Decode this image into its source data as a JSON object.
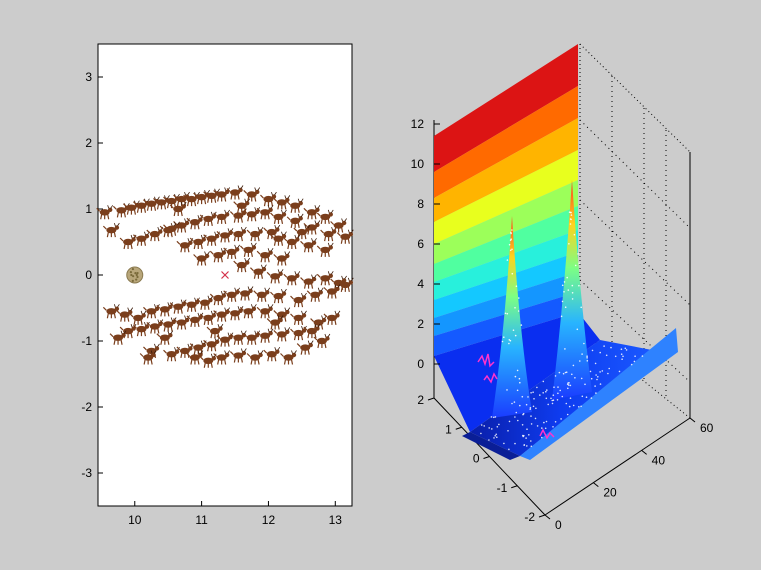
{
  "chart_data": [
    {
      "type": "scatter",
      "title": "",
      "xlabel": "",
      "ylabel": "",
      "xlim": [
        9.45,
        13.25
      ],
      "ylim": [
        -3.5,
        3.5
      ],
      "x_ticks": [
        "10",
        "11",
        "12",
        "13"
      ],
      "y_ticks": [
        "-3",
        "-2",
        "-1",
        "0",
        "1",
        "2",
        "3"
      ],
      "grid": false,
      "markers": {
        "agent_color": "#7a3e1c",
        "target_color": "#d4324a",
        "food_color": "#b8a67a"
      },
      "food_patch": {
        "x": 10.0,
        "y": 0.0
      },
      "target": {
        "x": 11.35,
        "y": 0.0
      },
      "agents_upper": [
        [
          9.55,
          0.95
        ],
        [
          9.65,
          0.68
        ],
        [
          9.8,
          0.98
        ],
        [
          9.95,
          1.02
        ],
        [
          10.1,
          1.05
        ],
        [
          10.25,
          1.08
        ],
        [
          10.4,
          1.1
        ],
        [
          10.55,
          1.12
        ],
        [
          10.7,
          1.15
        ],
        [
          10.85,
          1.15
        ],
        [
          11.0,
          1.18
        ],
        [
          11.15,
          1.2
        ],
        [
          11.3,
          1.22
        ],
        [
          11.5,
          1.25
        ],
        [
          11.75,
          1.22
        ],
        [
          12.0,
          1.15
        ],
        [
          12.2,
          1.1
        ],
        [
          12.4,
          1.05
        ],
        [
          12.65,
          0.95
        ],
        [
          12.85,
          0.88
        ],
        [
          9.9,
          0.5
        ],
        [
          10.1,
          0.55
        ],
        [
          10.3,
          0.62
        ],
        [
          10.5,
          0.68
        ],
        [
          10.7,
          0.75
        ],
        [
          10.9,
          0.8
        ],
        [
          11.1,
          0.85
        ],
        [
          11.3,
          0.88
        ],
        [
          11.55,
          0.9
        ],
        [
          11.75,
          0.92
        ],
        [
          11.95,
          0.95
        ],
        [
          12.15,
          0.88
        ],
        [
          12.4,
          0.82
        ],
        [
          12.65,
          0.72
        ],
        [
          12.9,
          0.62
        ],
        [
          13.05,
          0.75
        ],
        [
          13.15,
          0.58
        ],
        [
          10.65,
          1.0
        ],
        [
          11.6,
          1.05
        ],
        [
          12.5,
          0.65
        ],
        [
          10.75,
          0.45
        ],
        [
          10.95,
          0.5
        ],
        [
          11.15,
          0.55
        ],
        [
          11.35,
          0.6
        ],
        [
          11.55,
          0.62
        ],
        [
          11.8,
          0.62
        ],
        [
          12.05,
          0.65
        ],
        [
          12.35,
          0.5
        ],
        [
          12.6,
          0.45
        ],
        [
          12.85,
          0.38
        ],
        [
          11.0,
          0.25
        ],
        [
          11.25,
          0.3
        ],
        [
          11.45,
          0.35
        ],
        [
          11.7,
          0.38
        ],
        [
          11.95,
          0.3
        ],
        [
          12.2,
          0.25
        ],
        [
          11.6,
          0.15
        ],
        [
          11.85,
          0.05
        ],
        [
          12.1,
          -0.02
        ],
        [
          12.35,
          -0.05
        ],
        [
          12.6,
          -0.1
        ],
        [
          12.85,
          -0.05
        ],
        [
          13.05,
          -0.12
        ],
        [
          10.55,
          0.7
        ],
        [
          12.15,
          0.55
        ]
      ],
      "agents_lower": [
        [
          9.65,
          -0.55
        ],
        [
          9.85,
          -0.6
        ],
        [
          10.05,
          -0.65
        ],
        [
          10.25,
          -0.55
        ],
        [
          10.45,
          -0.52
        ],
        [
          10.65,
          -0.48
        ],
        [
          10.85,
          -0.45
        ],
        [
          11.05,
          -0.42
        ],
        [
          11.25,
          -0.35
        ],
        [
          11.45,
          -0.3
        ],
        [
          11.65,
          -0.28
        ],
        [
          11.9,
          -0.3
        ],
        [
          12.15,
          -0.32
        ],
        [
          12.45,
          -0.38
        ],
        [
          12.7,
          -0.3
        ],
        [
          12.95,
          -0.25
        ],
        [
          13.15,
          -0.15
        ],
        [
          9.9,
          -0.85
        ],
        [
          10.1,
          -0.82
        ],
        [
          10.3,
          -0.78
        ],
        [
          10.5,
          -0.75
        ],
        [
          10.7,
          -0.72
        ],
        [
          10.9,
          -0.68
        ],
        [
          11.1,
          -0.65
        ],
        [
          11.3,
          -0.6
        ],
        [
          11.5,
          -0.58
        ],
        [
          11.7,
          -0.55
        ],
        [
          11.95,
          -0.55
        ],
        [
          12.2,
          -0.6
        ],
        [
          12.45,
          -0.65
        ],
        [
          12.75,
          -0.72
        ],
        [
          12.95,
          -0.65
        ],
        [
          9.75,
          -0.95
        ],
        [
          10.25,
          -1.15
        ],
        [
          10.55,
          -1.2
        ],
        [
          10.75,
          -1.15
        ],
        [
          10.95,
          -1.1
        ],
        [
          11.15,
          -1.05
        ],
        [
          11.35,
          -0.98
        ],
        [
          11.55,
          -0.95
        ],
        [
          11.75,
          -0.95
        ],
        [
          11.95,
          -0.92
        ],
        [
          12.2,
          -0.9
        ],
        [
          12.45,
          -0.88
        ],
        [
          12.65,
          -0.85
        ],
        [
          10.9,
          -1.25
        ],
        [
          11.1,
          -1.3
        ],
        [
          11.3,
          -1.25
        ],
        [
          11.55,
          -1.22
        ],
        [
          11.8,
          -1.25
        ],
        [
          12.05,
          -1.2
        ],
        [
          12.3,
          -1.25
        ],
        [
          12.55,
          -1.1
        ],
        [
          10.2,
          -1.25
        ],
        [
          12.8,
          -1.0
        ],
        [
          10.45,
          -0.95
        ],
        [
          11.2,
          -0.85
        ],
        [
          12.1,
          -0.72
        ]
      ]
    },
    {
      "type": "surface",
      "title": "",
      "xlabel": "",
      "ylabel": "",
      "zlabel": "",
      "colormap": "jet",
      "x_axis": {
        "range": [
          -2,
          2
        ],
        "ticks": [
          "-2",
          "-1",
          "0",
          "1",
          "2"
        ]
      },
      "y_axis": {
        "range": [
          0,
          60
        ],
        "ticks": [
          "0",
          "20",
          "40",
          "60"
        ]
      },
      "z_axis": {
        "range": [
          0,
          12
        ],
        "ticks": [
          "0",
          "2",
          "4",
          "6",
          "8",
          "10",
          "12"
        ]
      },
      "grid": true,
      "surface_description_values": {
        "wall_max_z": 12,
        "valley_z": 0,
        "peaks": [
          {
            "x": -0.5,
            "y": 20,
            "z": 8
          },
          {
            "x": 0.5,
            "y": 38,
            "z": 10
          }
        ],
        "end_ridge_z": 1.5
      },
      "marker_color": "#ff33cc"
    }
  ]
}
